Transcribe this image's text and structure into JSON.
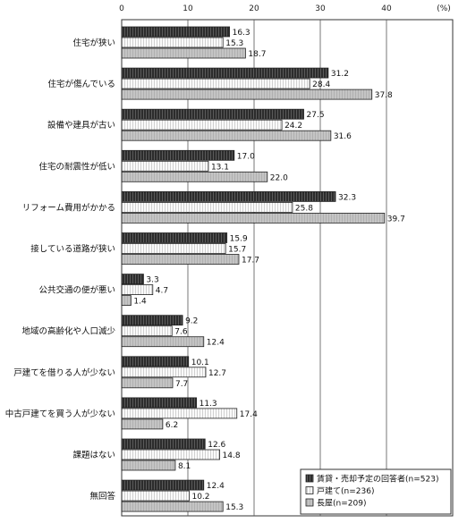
{
  "chart_data": {
    "type": "bar",
    "orientation": "horizontal",
    "unit": "(%)",
    "xlim": [
      0,
      50
    ],
    "ticks": [
      0,
      10,
      20,
      30,
      40
    ],
    "grid": true,
    "legend_position": "bottom-right",
    "categories": [
      "住宅が狭い",
      "住宅が傷んでいる",
      "設備や建具が古い",
      "住宅の耐震性が低い",
      "リフォーム費用がかかる",
      "接している道路が狭い",
      "公共交通の便が悪い",
      "地域の高齢化や人口減少",
      "戸建てを借りる人が少ない",
      "中古戸建てを買う人が少ない",
      "課題はない",
      "無回答"
    ],
    "series": [
      {
        "name": "賃貸・売却予定の回答者",
        "n": "(n=523)",
        "color": "#3a3a3a",
        "pattern": "dark",
        "values": [
          16.3,
          31.2,
          27.5,
          17.0,
          32.3,
          15.9,
          3.3,
          9.2,
          10.1,
          11.3,
          12.6,
          12.4
        ],
        "labels": [
          "16.3",
          "31.2",
          "27.5",
          "17.0",
          "32.3",
          "15.9",
          "3.3",
          "9.2",
          "10.1",
          "11.3",
          "12.6",
          "12.4"
        ]
      },
      {
        "name": "戸建て",
        "n": "(n=236)",
        "color": "#f4f4f4",
        "pattern": "light",
        "values": [
          15.3,
          28.4,
          24.2,
          13.1,
          25.8,
          15.7,
          4.7,
          7.6,
          12.7,
          17.4,
          14.8,
          10.2
        ],
        "labels": [
          "15.3",
          "28.4",
          "24.2",
          "13.1",
          "25.8",
          "15.7",
          "4.7",
          "7.6",
          "12.7",
          "17.4",
          "14.8",
          "10.2"
        ]
      },
      {
        "name": "長屋",
        "n": "(n=209)",
        "color": "#c8c8c8",
        "pattern": "gray",
        "values": [
          18.7,
          37.8,
          31.6,
          22.0,
          39.7,
          17.7,
          1.4,
          12.4,
          7.7,
          6.2,
          8.1,
          15.3
        ],
        "labels": [
          "18.7",
          "37.8",
          "31.6",
          "22.0",
          "39.7",
          "17.7",
          "1.4",
          "12.4",
          "7.7",
          "6.2",
          "8.1",
          "15.3"
        ]
      }
    ]
  }
}
